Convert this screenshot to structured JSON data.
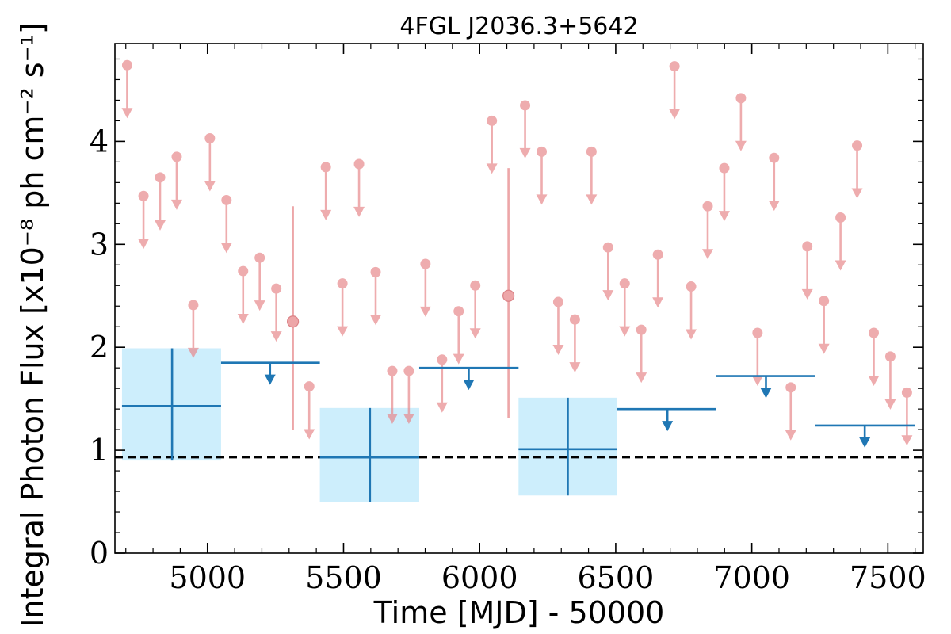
{
  "chart_data": {
    "type": "scatter",
    "title": "4FGL J2036.3+5642",
    "xlabel": "Time [MJD] - 50000",
    "ylabel": "Integral Photon Flux [x10⁻⁸ ph cm⁻² s⁻¹]",
    "xlim": [
      4660,
      7630
    ],
    "ylim": [
      0,
      4.95
    ],
    "xticks": [
      5000,
      5500,
      6000,
      6500,
      7000,
      7500
    ],
    "xtick_labels": [
      "5000",
      "5500",
      "6000",
      "6500",
      "7000",
      "7500"
    ],
    "yticks": [
      0,
      1,
      2,
      3,
      4
    ],
    "ytick_labels": [
      "0",
      "1",
      "2",
      "3",
      "4"
    ],
    "grid": false,
    "colors": {
      "short_bin": "#e8898c",
      "long_bin": "#1f77b4",
      "long_bin_fill": "#cdeefc",
      "reference_line": "#000000"
    },
    "reference_line": {
      "y": 0.93,
      "style": "dashed"
    },
    "short_bin_upper_limits": [
      {
        "x": 4705,
        "y": 4.74
      },
      {
        "x": 4765,
        "y": 3.47
      },
      {
        "x": 4826,
        "y": 3.65
      },
      {
        "x": 4887,
        "y": 3.85
      },
      {
        "x": 4948,
        "y": 2.41
      },
      {
        "x": 5009,
        "y": 4.03
      },
      {
        "x": 5070,
        "y": 3.43
      },
      {
        "x": 5131,
        "y": 2.74
      },
      {
        "x": 5192,
        "y": 2.87
      },
      {
        "x": 5253,
        "y": 2.57
      },
      {
        "x": 5374,
        "y": 1.62
      },
      {
        "x": 5435,
        "y": 3.75
      },
      {
        "x": 5496,
        "y": 2.62
      },
      {
        "x": 5557,
        "y": 3.78
      },
      {
        "x": 5618,
        "y": 2.73
      },
      {
        "x": 5679,
        "y": 1.77
      },
      {
        "x": 5740,
        "y": 1.77
      },
      {
        "x": 5801,
        "y": 2.81
      },
      {
        "x": 5862,
        "y": 1.88
      },
      {
        "x": 5923,
        "y": 2.35
      },
      {
        "x": 5984,
        "y": 2.6
      },
      {
        "x": 6045,
        "y": 4.2
      },
      {
        "x": 6167,
        "y": 4.35
      },
      {
        "x": 6228,
        "y": 3.9
      },
      {
        "x": 6289,
        "y": 2.44
      },
      {
        "x": 6350,
        "y": 2.27
      },
      {
        "x": 6411,
        "y": 3.9
      },
      {
        "x": 6472,
        "y": 2.97
      },
      {
        "x": 6533,
        "y": 2.62
      },
      {
        "x": 6594,
        "y": 2.17
      },
      {
        "x": 6655,
        "y": 2.9
      },
      {
        "x": 6716,
        "y": 4.73
      },
      {
        "x": 6777,
        "y": 2.59
      },
      {
        "x": 6838,
        "y": 3.37
      },
      {
        "x": 6899,
        "y": 3.74
      },
      {
        "x": 6960,
        "y": 4.42
      },
      {
        "x": 7021,
        "y": 2.14
      },
      {
        "x": 7082,
        "y": 3.84
      },
      {
        "x": 7143,
        "y": 1.61
      },
      {
        "x": 7204,
        "y": 2.98
      },
      {
        "x": 7265,
        "y": 2.45
      },
      {
        "x": 7326,
        "y": 3.26
      },
      {
        "x": 7387,
        "y": 3.96
      },
      {
        "x": 7448,
        "y": 2.14
      },
      {
        "x": 7509,
        "y": 1.91
      },
      {
        "x": 7570,
        "y": 1.56
      }
    ],
    "short_bin_detections": [
      {
        "x": 5314,
        "y": 2.25,
        "ylow": 1.2,
        "yhigh": 3.37
      },
      {
        "x": 6106,
        "y": 2.5,
        "ylow": 1.31,
        "yhigh": 3.74
      }
    ],
    "long_bin_detections": [
      {
        "x": 4870,
        "xlow": 4686,
        "xhigh": 5050,
        "y": 1.43,
        "ylow": 0.9,
        "yhigh": 1.99
      },
      {
        "x": 5597,
        "xlow": 5413,
        "xhigh": 5778,
        "y": 0.93,
        "ylow": 0.5,
        "yhigh": 1.41
      },
      {
        "x": 6324,
        "xlow": 6143,
        "xhigh": 6506,
        "y": 1.01,
        "ylow": 0.56,
        "yhigh": 1.51
      }
    ],
    "long_bin_upper_limits": [
      {
        "x": 5230,
        "xlow": 5050,
        "xhigh": 5413,
        "y": 1.85
      },
      {
        "x": 5960,
        "xlow": 5778,
        "xhigh": 6143,
        "y": 1.8
      },
      {
        "x": 6690,
        "xlow": 6506,
        "xhigh": 6870,
        "y": 1.4
      },
      {
        "x": 7052,
        "xlow": 6870,
        "xhigh": 7234,
        "y": 1.72
      },
      {
        "x": 7415,
        "xlow": 7234,
        "xhigh": 7598,
        "y": 1.24
      }
    ]
  }
}
